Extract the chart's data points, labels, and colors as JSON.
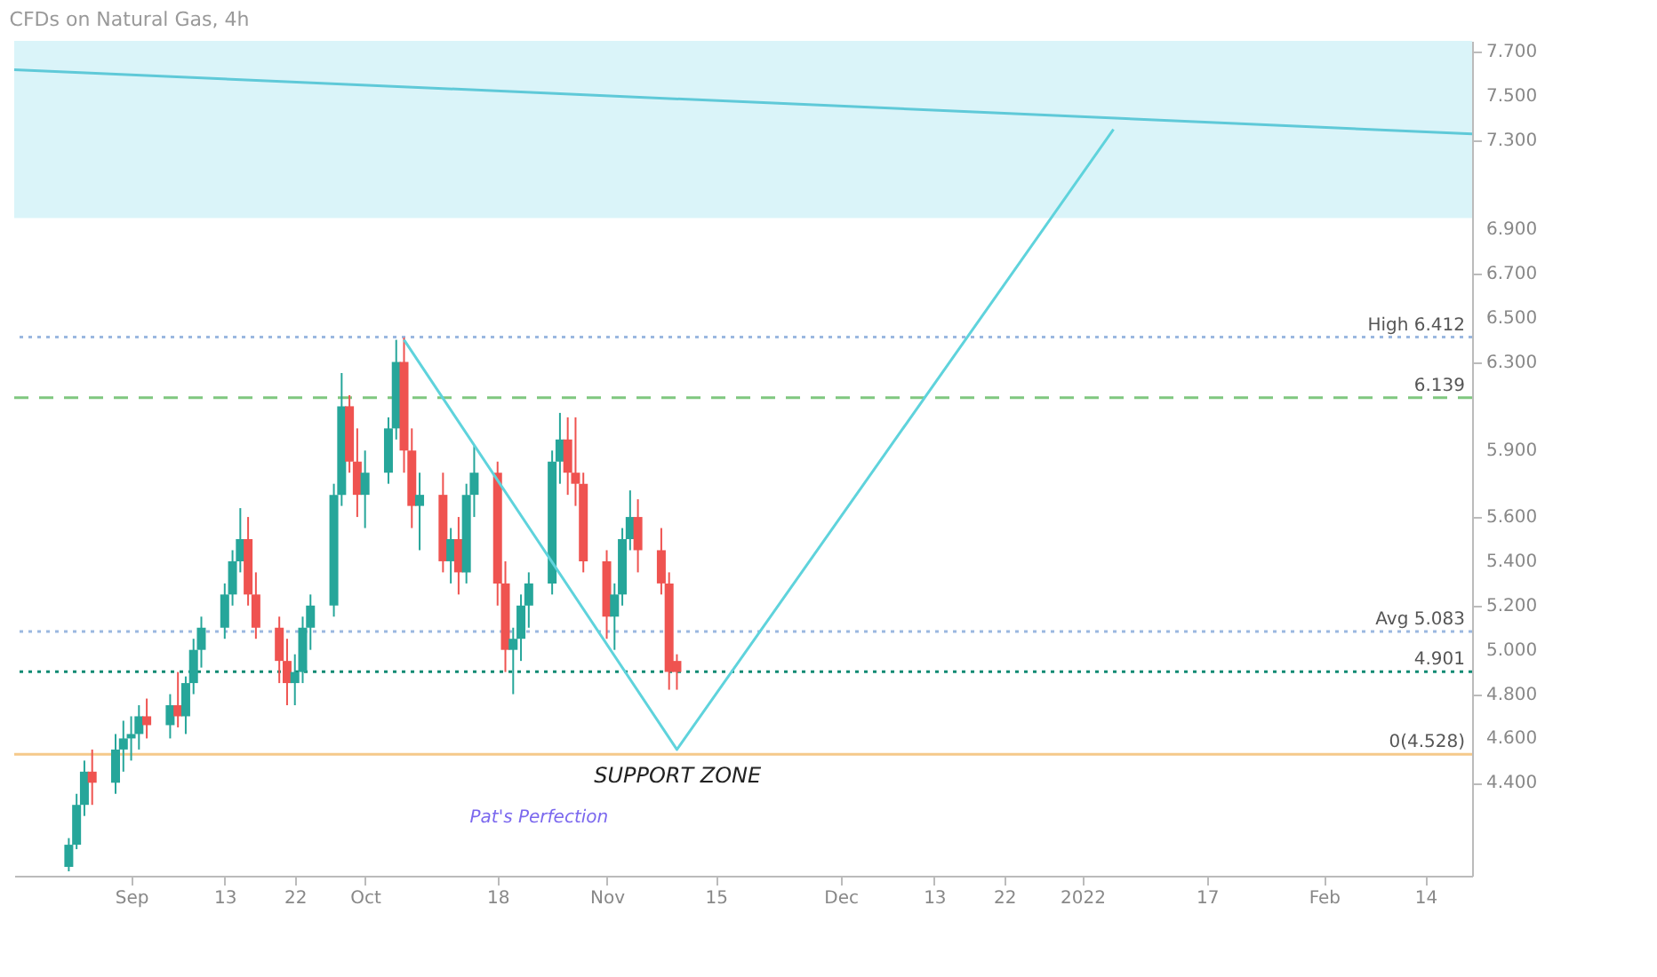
{
  "chart_data": {
    "type": "candlestick",
    "title": "CFDs on Natural Gas, 4h",
    "x": [
      "2021-08-24",
      "2021-08-25",
      "2021-08-26",
      "2021-08-27",
      "2021-08-30",
      "2021-08-31",
      "2021-09-01",
      "2021-09-02",
      "2021-09-03",
      "2021-09-06",
      "2021-09-07",
      "2021-09-08",
      "2021-09-09",
      "2021-09-10",
      "2021-09-13",
      "2021-09-14",
      "2021-09-15",
      "2021-09-16",
      "2021-09-17",
      "2021-09-20",
      "2021-09-21",
      "2021-09-22",
      "2021-09-23",
      "2021-09-24",
      "2021-09-27",
      "2021-09-28",
      "2021-09-29",
      "2021-09-30",
      "2021-10-01",
      "2021-10-04",
      "2021-10-05",
      "2021-10-06",
      "2021-10-07",
      "2021-10-08",
      "2021-10-11",
      "2021-10-12",
      "2021-10-13",
      "2021-10-14",
      "2021-10-15",
      "2021-10-18",
      "2021-10-19",
      "2021-10-20",
      "2021-10-21",
      "2021-10-22",
      "2021-10-25",
      "2021-10-26",
      "2021-10-27",
      "2021-10-28",
      "2021-10-29",
      "2021-11-01",
      "2021-11-02",
      "2021-11-03",
      "2021-11-04",
      "2021-11-05",
      "2021-11-08",
      "2021-11-09",
      "2021-11-10"
    ],
    "ohlc": [
      [
        4.02,
        4.15,
        4.0,
        4.12
      ],
      [
        4.12,
        4.35,
        4.1,
        4.3
      ],
      [
        4.3,
        4.5,
        4.25,
        4.45
      ],
      [
        4.45,
        4.55,
        4.3,
        4.4
      ],
      [
        4.4,
        4.62,
        4.35,
        4.55
      ],
      [
        4.55,
        4.68,
        4.45,
        4.6
      ],
      [
        4.6,
        4.7,
        4.5,
        4.62
      ],
      [
        4.62,
        4.75,
        4.55,
        4.7
      ],
      [
        4.7,
        4.78,
        4.6,
        4.66
      ],
      [
        4.66,
        4.8,
        4.6,
        4.75
      ],
      [
        4.75,
        4.9,
        4.65,
        4.7
      ],
      [
        4.7,
        4.88,
        4.62,
        4.85
      ],
      [
        4.85,
        5.05,
        4.8,
        5.0
      ],
      [
        5.0,
        5.15,
        4.92,
        5.1
      ],
      [
        5.1,
        5.3,
        5.05,
        5.25
      ],
      [
        5.25,
        5.45,
        5.2,
        5.4
      ],
      [
        5.4,
        5.64,
        5.35,
        5.5
      ],
      [
        5.5,
        5.6,
        5.2,
        5.25
      ],
      [
        5.25,
        5.35,
        5.05,
        5.1
      ],
      [
        5.1,
        5.15,
        4.85,
        4.95
      ],
      [
        4.95,
        5.05,
        4.75,
        4.85
      ],
      [
        4.85,
        4.98,
        4.75,
        4.9
      ],
      [
        4.9,
        5.15,
        4.85,
        5.1
      ],
      [
        5.1,
        5.25,
        5.0,
        5.2
      ],
      [
        5.2,
        5.75,
        5.15,
        5.7
      ],
      [
        5.7,
        6.25,
        5.65,
        6.1
      ],
      [
        6.1,
        6.15,
        5.8,
        5.85
      ],
      [
        5.85,
        6.0,
        5.6,
        5.7
      ],
      [
        5.7,
        5.9,
        5.55,
        5.8
      ],
      [
        5.8,
        6.05,
        5.75,
        6.0
      ],
      [
        6.0,
        6.4,
        5.95,
        6.3
      ],
      [
        6.3,
        6.41,
        5.8,
        5.9
      ],
      [
        5.9,
        6.0,
        5.55,
        5.65
      ],
      [
        5.65,
        5.8,
        5.45,
        5.7
      ],
      [
        5.7,
        5.8,
        5.35,
        5.4
      ],
      [
        5.4,
        5.55,
        5.3,
        5.5
      ],
      [
        5.5,
        5.6,
        5.25,
        5.35
      ],
      [
        5.35,
        5.75,
        5.3,
        5.7
      ],
      [
        5.7,
        5.92,
        5.6,
        5.8
      ],
      [
        5.8,
        5.85,
        5.2,
        5.3
      ],
      [
        5.3,
        5.4,
        4.9,
        5.0
      ],
      [
        5.0,
        5.1,
        4.8,
        5.05
      ],
      [
        5.05,
        5.25,
        4.95,
        5.2
      ],
      [
        5.2,
        5.35,
        5.1,
        5.3
      ],
      [
        5.3,
        5.9,
        5.25,
        5.85
      ],
      [
        5.85,
        6.07,
        5.75,
        5.95
      ],
      [
        5.95,
        6.05,
        5.7,
        5.8
      ],
      [
        5.8,
        6.05,
        5.65,
        5.75
      ],
      [
        5.75,
        5.8,
        5.35,
        5.4
      ],
      [
        5.4,
        5.45,
        5.05,
        5.15
      ],
      [
        5.15,
        5.3,
        5.0,
        5.25
      ],
      [
        5.25,
        5.55,
        5.2,
        5.5
      ],
      [
        5.5,
        5.72,
        5.45,
        5.6
      ],
      [
        5.6,
        5.68,
        5.35,
        5.45
      ],
      [
        5.45,
        5.55,
        5.25,
        5.3
      ],
      [
        5.3,
        5.35,
        4.82,
        4.9
      ],
      [
        4.95,
        4.98,
        4.82,
        4.9
      ]
    ],
    "series": [
      {
        "type": "line",
        "color": "#5fd3dc",
        "x": [
          "2021-10-06",
          "2021-11-10",
          "2022-01-05"
        ],
        "values": [
          6.4,
          4.55,
          7.35
        ]
      },
      {
        "type": "line",
        "color": "#5fc9d8",
        "x": [
          "2021-08-17",
          "2022-02-20"
        ],
        "values": [
          7.62,
          7.33
        ]
      }
    ],
    "xlim": [
      "2021-08-17",
      "2022-02-20"
    ],
    "xticks": [
      {
        "value": "2021-09-01",
        "label": "Sep"
      },
      {
        "value": "2021-09-13",
        "label": "13"
      },
      {
        "value": "2021-09-22",
        "label": "22"
      },
      {
        "value": "2021-10-01",
        "label": "Oct"
      },
      {
        "value": "2021-10-18",
        "label": "18"
      },
      {
        "value": "2021-11-01",
        "label": "Nov"
      },
      {
        "value": "2021-11-15",
        "label": "15"
      },
      {
        "value": "2021-12-01",
        "label": "Dec"
      },
      {
        "value": "2021-12-13",
        "label": "13"
      },
      {
        "value": "2021-12-22",
        "label": "22"
      },
      {
        "value": "2022-01-01",
        "label": "2022"
      },
      {
        "value": "2022-01-17",
        "label": "17"
      },
      {
        "value": "2022-02-01",
        "label": "Feb"
      },
      {
        "value": "2022-02-14",
        "label": "14"
      }
    ],
    "ylim": [
      3.98,
      7.75
    ],
    "yticks": [
      {
        "value": 4.4,
        "label": "4.400"
      },
      {
        "value": 4.6,
        "label": "4.600"
      },
      {
        "value": 4.8,
        "label": "4.800"
      },
      {
        "value": 5.0,
        "label": "5.000"
      },
      {
        "value": 5.2,
        "label": "5.200"
      },
      {
        "value": 5.4,
        "label": "5.400"
      },
      {
        "value": 5.6,
        "label": "5.600"
      },
      {
        "value": 5.9,
        "label": "5.900"
      },
      {
        "value": 6.3,
        "label": "6.300"
      },
      {
        "value": 6.5,
        "label": "6.500"
      },
      {
        "value": 6.7,
        "label": "6.700"
      },
      {
        "value": 6.9,
        "label": "6.900"
      },
      {
        "value": 7.3,
        "label": "7.300"
      },
      {
        "value": 7.5,
        "label": "7.500"
      },
      {
        "value": 7.7,
        "label": "7.700"
      }
    ],
    "ref_lines": [
      {
        "axis": "y",
        "value": 6.139,
        "label": "6.139",
        "color": "#7fc77f",
        "line_style": "dashed"
      },
      {
        "axis": "y",
        "value": 4.901,
        "label": "4.901",
        "color": "#0e8a73",
        "line_style": "dotted"
      },
      {
        "axis": "y",
        "value": 6.412,
        "label": "High 6.412",
        "color": "#9bb8e0",
        "line_style": "dotted"
      },
      {
        "axis": "y",
        "value": 5.083,
        "label": "Avg 5.083",
        "color": "#9bb8e0",
        "line_style": "dotted"
      },
      {
        "axis": "y",
        "value": 4.528,
        "label": "0(4.528)",
        "color": "#f5c98a",
        "line_style": "solid"
      }
    ],
    "bands": [
      {
        "axis": "y",
        "from": 6.95,
        "to": 7.75,
        "color": "#d6f3f8"
      }
    ],
    "annotations": [
      "SUPPORT ZONE",
      "Pat's Perfection"
    ],
    "grid": false,
    "legend": false
  }
}
